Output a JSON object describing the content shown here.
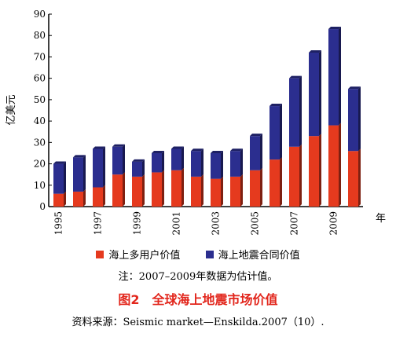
{
  "chart_data": {
    "type": "bar",
    "stacked": true,
    "categories": [
      "1995",
      "1996",
      "1997",
      "1998",
      "1999",
      "2000",
      "2001",
      "2002",
      "2003",
      "2004",
      "2005",
      "2006",
      "2007",
      "2008",
      "2009",
      "2010"
    ],
    "xtick_labels": [
      "1995",
      "",
      "1997",
      "",
      "1999",
      "",
      "2001",
      "",
      "2003",
      "",
      "2005",
      "",
      "2007",
      "",
      "2009",
      ""
    ],
    "series": [
      {
        "name": "海上多用户价值",
        "color": "#e53a1e",
        "values": [
          6,
          7,
          9,
          15,
          14,
          16,
          17,
          14,
          13,
          14,
          17,
          22,
          28,
          33,
          38,
          26
        ]
      },
      {
        "name": "海上地震合同价值",
        "color": "#2b2e8f",
        "values": [
          14,
          16,
          18,
          13,
          7,
          9,
          10,
          12,
          12,
          12,
          16,
          25,
          32,
          39,
          45,
          29
        ]
      }
    ],
    "ylabel": "亿美元",
    "xlabel": "年",
    "ylim": [
      0,
      90
    ],
    "yticks": [
      0,
      10,
      20,
      30,
      40,
      50,
      60,
      70,
      80,
      90
    ],
    "legend_position": "bottom"
  },
  "note": "注：2007–2009年数据为估计值。",
  "caption": "图2　全球海上地震市场价值",
  "source": "资料来源：Seismic market—Enskilda.2007（10）."
}
